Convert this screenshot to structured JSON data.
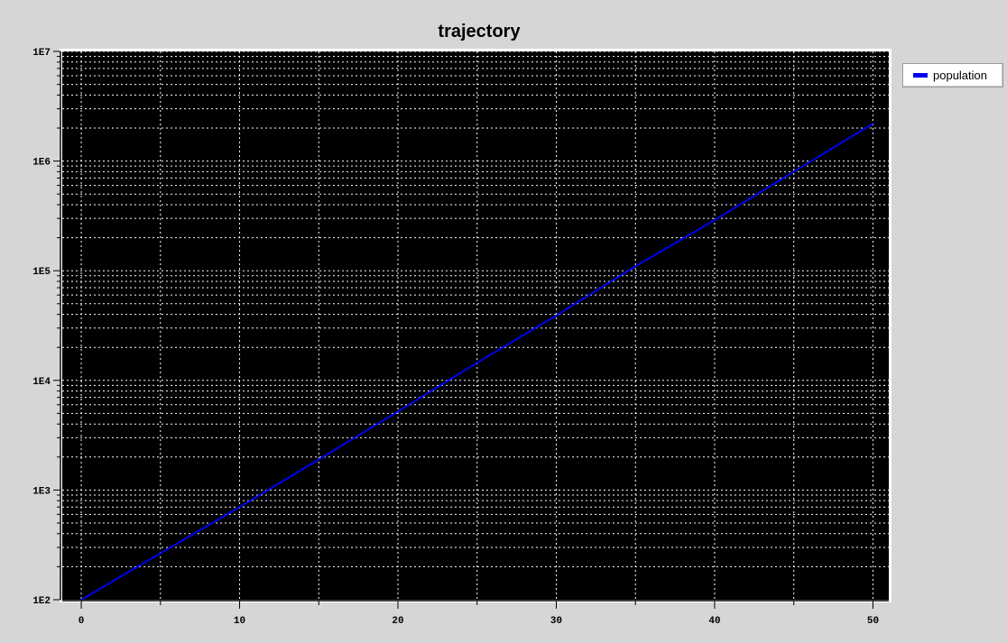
{
  "chart_data": {
    "type": "line",
    "title": "trajectory",
    "xlabel": "",
    "ylabel": "",
    "x_ticks": [
      0,
      10,
      20,
      30,
      40,
      50
    ],
    "x_tick_labels": [
      "0",
      "10",
      "20",
      "30",
      "40",
      "50"
    ],
    "y_ticks": [
      100,
      1000,
      10000,
      100000,
      1000000,
      10000000
    ],
    "y_tick_labels": [
      "1E2",
      "1E3",
      "1E4",
      "1E5",
      "1E6",
      "1E7"
    ],
    "xlim": [
      -1.2,
      51
    ],
    "ylim": [
      100,
      10000000
    ],
    "y_scale": "log",
    "grid": true,
    "legend_position": "outside-top-right",
    "series": [
      {
        "name": "population",
        "color": "#0000ee",
        "x": [
          0,
          5,
          10,
          15,
          20,
          25,
          30,
          35,
          40,
          45,
          50
        ],
        "y": [
          100,
          265,
          700,
          1900,
          5200,
          14500,
          39000,
          110000,
          290000,
          800000,
          2200000
        ]
      }
    ]
  }
}
